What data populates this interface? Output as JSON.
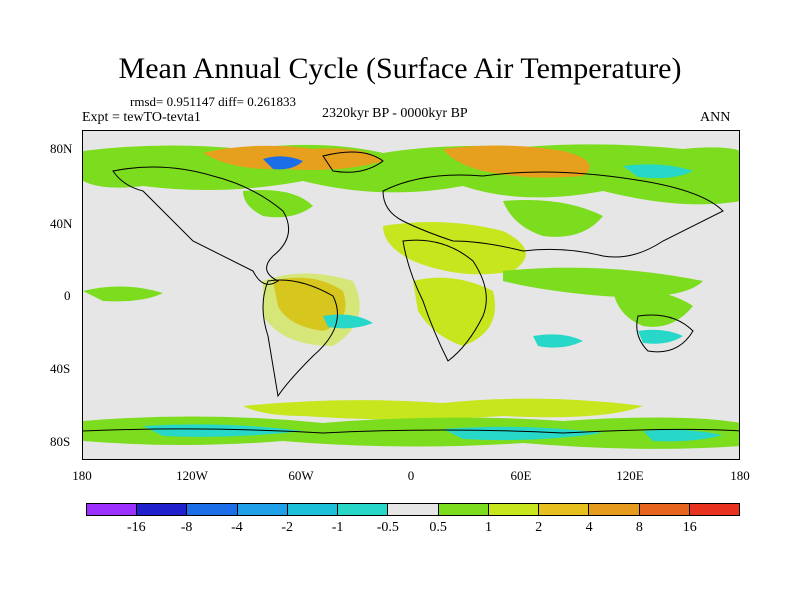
{
  "title": "Mean Annual Cycle (Surface Air Temperature)",
  "stats": "rmsd= 0.951147 diff= 0.261833",
  "experiment": "Expt = tewTO-tevta1",
  "period": "2320kyr BP - 0000kyr BP",
  "season": "ANN",
  "lat_labels": [
    "80N",
    "40N",
    "0",
    "40S",
    "80S"
  ],
  "lon_labels": [
    "180",
    "120W",
    "60W",
    "0",
    "60E",
    "120E",
    "180"
  ],
  "colorbar": {
    "colors": [
      "#9b30ff",
      "#2020cc",
      "#1c6de8",
      "#1fa0e8",
      "#1cc0d8",
      "#27d8c8",
      "#e6e6e6",
      "#7cdc1e",
      "#c8e61e",
      "#e6c01e",
      "#e69a1e",
      "#e6641e",
      "#e6321e"
    ],
    "labels": [
      "-16",
      "-8",
      "-4",
      "-2",
      "-1",
      "-0.5",
      "0.5",
      "1",
      "2",
      "4",
      "8",
      "16"
    ]
  },
  "map_colors": {
    "background": "#e6e6e6",
    "green": "#7cdc1e",
    "yellow": "#c8e61e",
    "orange": "#e6a01e",
    "cyan": "#27d8c8",
    "coast": "#000000"
  }
}
